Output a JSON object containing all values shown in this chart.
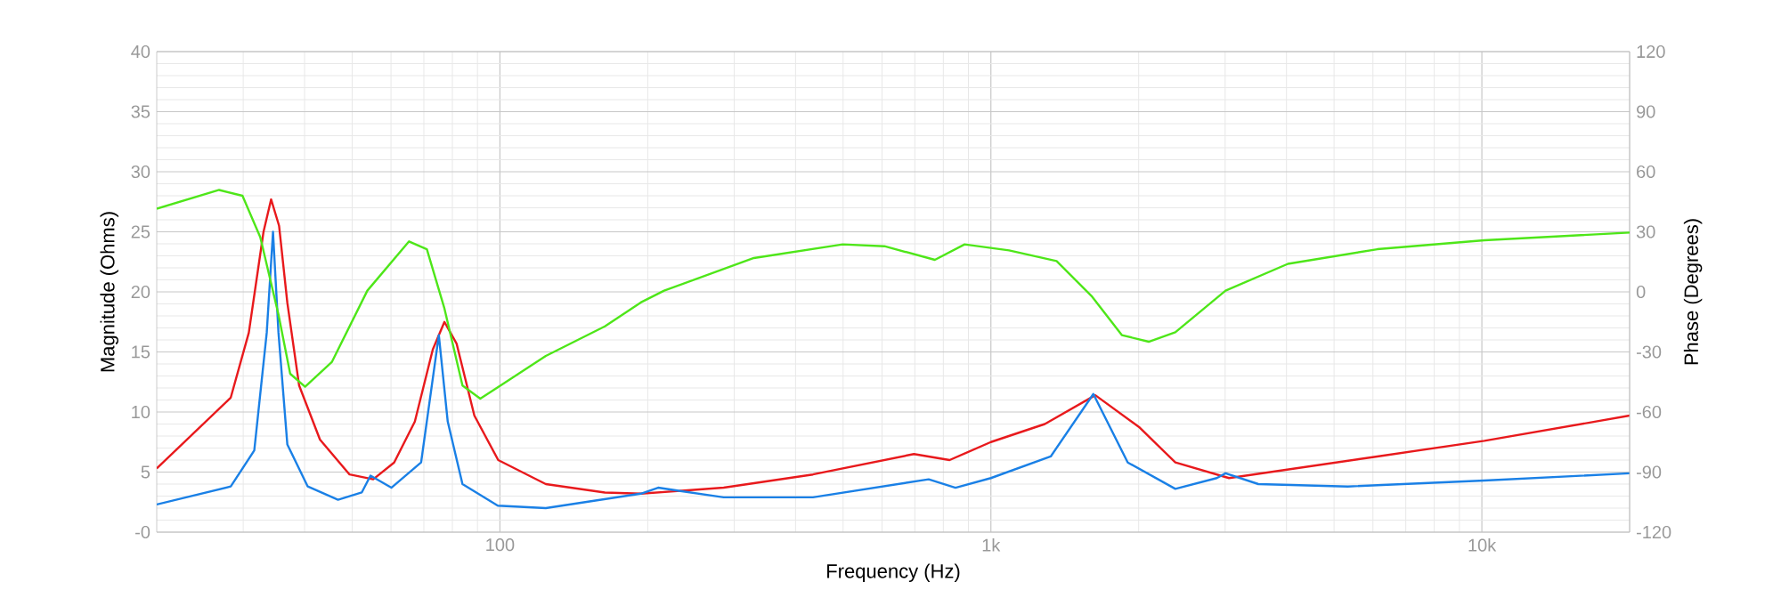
{
  "chart_data": {
    "type": "line",
    "xlabel": "Frequency (Hz)",
    "ylabel": "Magnitude (Ohms)",
    "y2label": "Phase (Degrees)",
    "log": "x",
    "grid": true,
    "xlim": [
      20,
      20000
    ],
    "xticks": [
      100,
      {
        "value": 1000,
        "label": "1k"
      },
      {
        "value": 10000,
        "label": "10k"
      }
    ],
    "ylim": [
      0,
      40
    ],
    "yticks": [
      {
        "value": 0,
        "label": "-0"
      },
      5,
      10,
      15,
      20,
      25,
      30,
      35,
      40
    ],
    "y2lim": [
      -120,
      120
    ],
    "y2ticks": [
      -120,
      -90,
      -60,
      -30,
      0,
      30,
      60,
      90,
      120
    ],
    "series": [
      {
        "color": "#e8191c",
        "x": [
          20,
          28.3,
          30.8,
          33,
          34.2,
          35.5,
          36.9,
          39,
          43,
          49.4,
          55.2,
          60.9,
          67.1,
          73,
          77.1,
          81.6,
          88.7,
          99.2,
          124,
          163.6,
          193.6,
          285.6,
          434,
          697,
          824,
          1000,
          1288,
          1632,
          2010,
          2375,
          3055,
          6124,
          10120,
          20000
        ],
        "values": [
          5.3,
          11.2,
          16.6,
          25,
          27.7,
          25.5,
          19.1,
          12.2,
          7.7,
          4.8,
          4.4,
          5.8,
          9.2,
          15.2,
          17.5,
          15.7,
          9.7,
          6.0,
          4.0,
          3.3,
          3.2,
          3.7,
          4.8,
          6.5,
          6.0,
          7.5,
          9.0,
          11.4,
          8.7,
          5.8,
          4.5,
          6.3,
          7.6,
          9.7
        ]
      },
      {
        "color": "#1a80e6",
        "x": [
          20,
          28.3,
          31.6,
          33.5,
          34.5,
          35.4,
          36.9,
          40.6,
          46.8,
          52.3,
          54.5,
          60.1,
          69.1,
          75.1,
          78.3,
          83.9,
          99,
          124,
          193.6,
          210,
          285.6,
          434,
          747,
          847,
          1000,
          1324,
          1617,
          1900,
          2375,
          2884,
          3006,
          3506,
          5333,
          10120,
          20000
        ],
        "values": [
          2.3,
          3.8,
          6.8,
          16.6,
          25,
          16.6,
          7.3,
          3.8,
          2.7,
          3.3,
          4.7,
          3.7,
          5.8,
          16.4,
          9.2,
          4.0,
          2.2,
          2.0,
          3.2,
          3.7,
          2.9,
          2.9,
          4.4,
          3.7,
          4.5,
          6.3,
          11.5,
          5.8,
          3.6,
          4.5,
          4.9,
          4.0,
          3.8,
          4.3,
          4.9
        ]
      },
      {
        "color": "#4ee619",
        "axis": "y2",
        "x": [
          20,
          26.8,
          29.9,
          32.5,
          35.4,
          37.4,
          40.1,
          45.5,
          53.7,
          65.3,
          71,
          77.1,
          83.9,
          91.2,
          99,
          124,
          163.6,
          193.6,
          216,
          329,
          499,
          607,
          769,
          884,
          1089,
          1361,
          1608,
          1848,
          2096,
          2375,
          3006,
          4027,
          6124,
          10120,
          20000
        ],
        "values": [
          41.5,
          50.9,
          48,
          27.3,
          -11.3,
          -40.9,
          -47.4,
          -34.9,
          0.6,
          25.2,
          21.3,
          -8.3,
          -46.8,
          -53.3,
          -47.7,
          -32,
          -17.2,
          -5.3,
          0.6,
          16.9,
          23.7,
          22.8,
          16,
          23.7,
          20.7,
          15.4,
          -2.4,
          -21.6,
          -24.9,
          -20.2,
          0.6,
          14,
          21.3,
          25.8,
          29.6
        ]
      }
    ]
  }
}
